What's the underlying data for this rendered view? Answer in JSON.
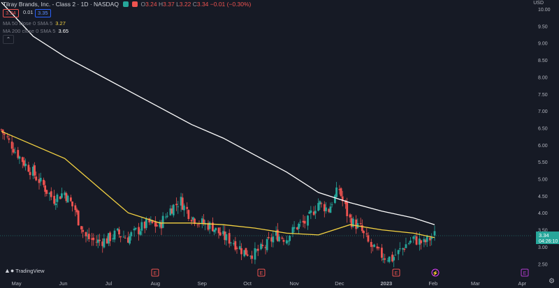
{
  "header": {
    "title": "Tilray Brands, Inc. - Class 2 · 1D · NASDAQ",
    "open_label": "O",
    "open": "3.24",
    "high_label": "H",
    "high": "3.37",
    "low_label": "L",
    "low": "3.22",
    "close_label": "C",
    "close": "3.34",
    "change": "−0.01 (−0.30%)"
  },
  "badges": {
    "sell": "3.34",
    "spread": "0.01",
    "buy": "3.35"
  },
  "indicators": [
    {
      "label": "MA 50 close 0 SMA 5",
      "value": "3.27",
      "color": "#f5d342"
    },
    {
      "label": "MA 200 close 0 SMA 5",
      "value": "3.65",
      "color": "#ffffff"
    }
  ],
  "collapse_icon": "chevron-up-icon",
  "price_axis": {
    "currency": "USD",
    "ticks": [
      "10.00",
      "9.50",
      "9.00",
      "8.50",
      "8.00",
      "7.50",
      "7.00",
      "6.50",
      "6.00",
      "5.50",
      "5.00",
      "4.50",
      "4.00",
      "3.50",
      "3.00",
      "2.50"
    ],
    "last_price": "3.34",
    "countdown": "04:26:10"
  },
  "time_axis": {
    "ticks": [
      "May",
      "Jun",
      "Jul",
      "Aug",
      "Sep",
      "Oct",
      "Nov",
      "Dec",
      "2023",
      "Feb",
      "Mar",
      "Apr"
    ]
  },
  "markers": [
    {
      "type": "E",
      "date": "Aug"
    },
    {
      "type": "E",
      "date": "Oct"
    },
    {
      "type": "E",
      "date": "Jan"
    },
    {
      "type": "dividend",
      "date": "Feb"
    },
    {
      "type": "E",
      "date": "Apr"
    }
  ],
  "logo": "TradingView",
  "colors": {
    "up": "#26a69a",
    "down": "#ef5350",
    "ma50": "#f5d342",
    "ma200": "#ffffff",
    "bg": "#161a25"
  },
  "chart_data": {
    "type": "candlestick",
    "title": "Tilray Brands, Inc. - Class 2 · 1D · NASDAQ",
    "ylabel": "USD",
    "ylim": [
      2.25,
      10.1
    ],
    "x_ticks": [
      "May",
      "Jun",
      "Jul",
      "Aug",
      "Sep",
      "Oct",
      "Nov",
      "Dec",
      "2023",
      "Feb",
      "Mar",
      "Apr"
    ],
    "close_path": [
      [
        "2022-04-21",
        6.45
      ],
      [
        "2022-04-28",
        6.0
      ],
      [
        "2022-05-05",
        5.55
      ],
      [
        "2022-05-12",
        5.2
      ],
      [
        "2022-05-19",
        4.8
      ],
      [
        "2022-05-26",
        4.4
      ],
      [
        "2022-06-02",
        4.6
      ],
      [
        "2022-06-09",
        4.1
      ],
      [
        "2022-06-16",
        3.3
      ],
      [
        "2022-06-23",
        3.15
      ],
      [
        "2022-06-30",
        3.2
      ],
      [
        "2022-07-07",
        3.4
      ],
      [
        "2022-07-14",
        3.25
      ],
      [
        "2022-07-21",
        3.5
      ],
      [
        "2022-07-28",
        3.7
      ],
      [
        "2022-08-04",
        3.6
      ],
      [
        "2022-08-11",
        4.1
      ],
      [
        "2022-08-18",
        4.35
      ],
      [
        "2022-08-25",
        3.9
      ],
      [
        "2022-09-01",
        3.7
      ],
      [
        "2022-09-08",
        3.6
      ],
      [
        "2022-09-15",
        3.3
      ],
      [
        "2022-09-22",
        3.15
      ],
      [
        "2022-09-29",
        2.85
      ],
      [
        "2022-10-06",
        2.8
      ],
      [
        "2022-10-13",
        3.0
      ],
      [
        "2022-10-20",
        3.35
      ],
      [
        "2022-10-27",
        3.25
      ],
      [
        "2022-11-03",
        3.6
      ],
      [
        "2022-11-10",
        3.75
      ],
      [
        "2022-11-17",
        4.3
      ],
      [
        "2022-11-24",
        4.1
      ],
      [
        "2022-12-01",
        4.7
      ],
      [
        "2022-12-08",
        3.8
      ],
      [
        "2022-12-15",
        3.55
      ],
      [
        "2022-12-22",
        3.0
      ],
      [
        "2022-12-29",
        2.75
      ],
      [
        "2023-01-05",
        2.65
      ],
      [
        "2023-01-12",
        2.95
      ],
      [
        "2023-01-19",
        3.25
      ],
      [
        "2023-01-26",
        3.1
      ],
      [
        "2023-02-02",
        3.34
      ]
    ],
    "ma50_path": [
      [
        "2022-04-21",
        6.4
      ],
      [
        "2022-05-12",
        6.0
      ],
      [
        "2022-06-02",
        5.6
      ],
      [
        "2022-06-23",
        4.8
      ],
      [
        "2022-07-14",
        4.0
      ],
      [
        "2022-08-04",
        3.7
      ],
      [
        "2022-08-25",
        3.7
      ],
      [
        "2022-09-15",
        3.65
      ],
      [
        "2022-10-06",
        3.55
      ],
      [
        "2022-10-27",
        3.4
      ],
      [
        "2022-11-17",
        3.35
      ],
      [
        "2022-12-08",
        3.65
      ],
      [
        "2022-12-29",
        3.5
      ],
      [
        "2023-01-19",
        3.4
      ],
      [
        "2023-02-02",
        3.27
      ]
    ],
    "ma200_path": [
      [
        "2022-04-21",
        10.2
      ],
      [
        "2022-05-12",
        9.2
      ],
      [
        "2022-06-02",
        8.6
      ],
      [
        "2022-06-23",
        8.1
      ],
      [
        "2022-07-14",
        7.6
      ],
      [
        "2022-08-04",
        7.1
      ],
      [
        "2022-08-25",
        6.6
      ],
      [
        "2022-09-15",
        6.2
      ],
      [
        "2022-10-06",
        5.7
      ],
      [
        "2022-10-27",
        5.2
      ],
      [
        "2022-11-17",
        4.6
      ],
      [
        "2022-12-08",
        4.3
      ],
      [
        "2022-12-29",
        4.05
      ],
      [
        "2023-01-19",
        3.85
      ],
      [
        "2023-02-02",
        3.65
      ]
    ]
  }
}
